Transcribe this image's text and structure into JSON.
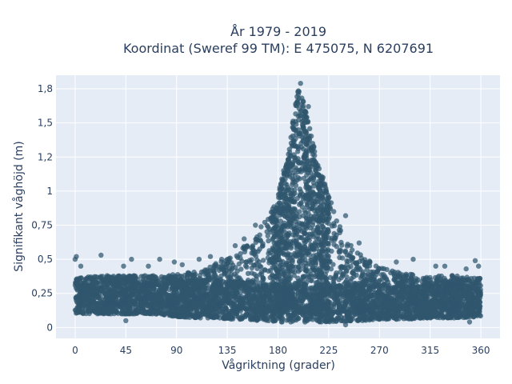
{
  "chart_data": {
    "type": "scatter",
    "title_line1": "År 1979 - 2019",
    "title_line2": "Koordinat (Sweref 99 TM): E 475075, N 6207691",
    "xlabel": "Vågriktning (grader)",
    "ylabel": "Signifikant våghöjd (m)",
    "xlim": [
      -17,
      377
    ],
    "ylim": [
      -0.08,
      1.85
    ],
    "xticks": [
      0,
      45,
      90,
      135,
      180,
      225,
      270,
      315,
      360
    ],
    "xtick_labels": [
      "0",
      "45",
      "90",
      "135",
      "180",
      "225",
      "270",
      "315",
      "360"
    ],
    "yticks": [
      0,
      0.25,
      0.5,
      0.75,
      1,
      1.25,
      1.5,
      1.75
    ],
    "ytick_labels": [
      "0",
      "0,25",
      "0,5",
      "0,75",
      "1",
      "1,2",
      "1,5",
      "1,8"
    ],
    "grid": true,
    "background": "#e5ecf6",
    "marker_color": "#2f566d",
    "envelope": [
      {
        "x": 0,
        "low": 0.1,
        "high": 0.36
      },
      {
        "x": 20,
        "low": 0.1,
        "high": 0.38
      },
      {
        "x": 45,
        "low": 0.1,
        "high": 0.38
      },
      {
        "x": 70,
        "low": 0.1,
        "high": 0.38
      },
      {
        "x": 90,
        "low": 0.08,
        "high": 0.39
      },
      {
        "x": 110,
        "low": 0.07,
        "high": 0.42
      },
      {
        "x": 125,
        "low": 0.07,
        "high": 0.47
      },
      {
        "x": 140,
        "low": 0.06,
        "high": 0.52
      },
      {
        "x": 150,
        "low": 0.06,
        "high": 0.6
      },
      {
        "x": 160,
        "low": 0.05,
        "high": 0.68
      },
      {
        "x": 170,
        "low": 0.05,
        "high": 0.8
      },
      {
        "x": 180,
        "low": 0.04,
        "high": 0.98
      },
      {
        "x": 190,
        "low": 0.04,
        "high": 1.3
      },
      {
        "x": 197,
        "low": 0.04,
        "high": 1.78
      },
      {
        "x": 205,
        "low": 0.04,
        "high": 1.6
      },
      {
        "x": 215,
        "low": 0.04,
        "high": 1.2
      },
      {
        "x": 225,
        "low": 0.04,
        "high": 0.98
      },
      {
        "x": 235,
        "low": 0.04,
        "high": 0.76
      },
      {
        "x": 245,
        "low": 0.05,
        "high": 0.6
      },
      {
        "x": 255,
        "low": 0.05,
        "high": 0.52
      },
      {
        "x": 270,
        "low": 0.06,
        "high": 0.44
      },
      {
        "x": 290,
        "low": 0.06,
        "high": 0.4
      },
      {
        "x": 315,
        "low": 0.07,
        "high": 0.38
      },
      {
        "x": 340,
        "low": 0.07,
        "high": 0.38
      },
      {
        "x": 360,
        "low": 0.08,
        "high": 0.36
      }
    ],
    "notable_points": [
      {
        "x": 200,
        "y": 1.79
      },
      {
        "x": 198,
        "y": 1.71
      },
      {
        "x": 207,
        "y": 1.62
      },
      {
        "x": 203,
        "y": 1.55
      },
      {
        "x": 193,
        "y": 1.5
      },
      {
        "x": 210,
        "y": 1.32
      },
      {
        "x": 185,
        "y": 1.15
      },
      {
        "x": 220,
        "y": 1.1
      },
      {
        "x": 225,
        "y": 0.95
      },
      {
        "x": 240,
        "y": 0.82
      },
      {
        "x": 252,
        "y": 0.62
      },
      {
        "x": 160,
        "y": 0.75
      },
      {
        "x": 0,
        "y": 0.5
      },
      {
        "x": 1,
        "y": 0.52
      },
      {
        "x": 5,
        "y": 0.45
      },
      {
        "x": 23,
        "y": 0.53
      },
      {
        "x": 43,
        "y": 0.45
      },
      {
        "x": 50,
        "y": 0.5
      },
      {
        "x": 65,
        "y": 0.45
      },
      {
        "x": 75,
        "y": 0.5
      },
      {
        "x": 88,
        "y": 0.48
      },
      {
        "x": 95,
        "y": 0.46
      },
      {
        "x": 110,
        "y": 0.5
      },
      {
        "x": 120,
        "y": 0.52
      },
      {
        "x": 130,
        "y": 0.5
      },
      {
        "x": 142,
        "y": 0.6
      },
      {
        "x": 150,
        "y": 0.65
      },
      {
        "x": 285,
        "y": 0.48
      },
      {
        "x": 300,
        "y": 0.5
      },
      {
        "x": 320,
        "y": 0.45
      },
      {
        "x": 328,
        "y": 0.45
      },
      {
        "x": 347,
        "y": 0.43
      },
      {
        "x": 355,
        "y": 0.49
      },
      {
        "x": 358,
        "y": 0.45
      },
      {
        "x": 45,
        "y": 0.05
      },
      {
        "x": 240,
        "y": 0.02
      },
      {
        "x": 350,
        "y": 0.04
      }
    ]
  }
}
